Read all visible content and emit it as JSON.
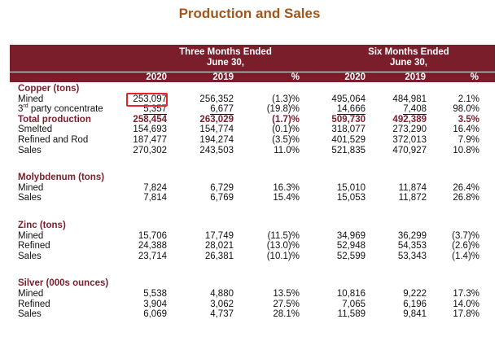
{
  "title": "Production and Sales",
  "header": {
    "group1_line1": "Three Months Ended",
    "group1_line2": "June 30,",
    "group2_line1": "Six Months Ended",
    "group2_line2": "June 30,",
    "columns": [
      "2020",
      "2019",
      "%",
      "2020",
      "2019",
      "%"
    ]
  },
  "colors": {
    "header_bg": "#7b1e2c",
    "title": "#a0561c",
    "highlight": "#e3242b"
  },
  "sections": {
    "copper": {
      "label": "Copper (tons)",
      "rows": [
        {
          "label": "Mined",
          "v": [
            "253,097",
            "256,352",
            "(1.3)%",
            "495,064",
            "484,981",
            "2.1%"
          ]
        },
        {
          "label_prefix": "3",
          "label_sup": "rd",
          "label_rest": " party concentrate",
          "v": [
            "5,357",
            "6,677",
            "(19.8)%",
            "14,666",
            "7,408",
            "98.0%"
          ]
        },
        {
          "label": "Total production",
          "v": [
            "258,454",
            "263,029",
            "(1.7)%",
            "509,730",
            "492,389",
            "3.5%"
          ]
        },
        {
          "label": "Smelted",
          "v": [
            "154,693",
            "154,774",
            "(0.1)%",
            "318,077",
            "273,290",
            "16.4%"
          ]
        },
        {
          "label": "Refined and Rod",
          "v": [
            "187,477",
            "194,274",
            "(3.5)%",
            "401,529",
            "372,013",
            "7.9%"
          ]
        },
        {
          "label": "Sales",
          "v": [
            "270,302",
            "243,503",
            "11.0%",
            "521,835",
            "470,927",
            "10.8%"
          ]
        }
      ]
    },
    "molybdenum": {
      "label": "Molybdenum (tons)",
      "rows": [
        {
          "label": "Mined",
          "v": [
            "7,824",
            "6,729",
            "16.3%",
            "15,010",
            "11,874",
            "26.4%"
          ]
        },
        {
          "label": "Sales",
          "v": [
            "7,814",
            "6,769",
            "15.4%",
            "15,053",
            "11,872",
            "26.8%"
          ]
        }
      ]
    },
    "zinc": {
      "label": "Zinc (tons)",
      "rows": [
        {
          "label": "Mined",
          "v": [
            "15,706",
            "17,749",
            "(11.5)%",
            "34,969",
            "36,299",
            "(3.7)%"
          ]
        },
        {
          "label": "Refined",
          "v": [
            "24,388",
            "28,021",
            "(13.0)%",
            "52,948",
            "54,353",
            "(2.6)%"
          ]
        },
        {
          "label": "Sales",
          "v": [
            "23,714",
            "26,381",
            "(10.1)%",
            "52,599",
            "53,343",
            "(1.4)%"
          ]
        }
      ]
    },
    "silver": {
      "label": "Silver (000s ounces)",
      "rows": [
        {
          "label": "Mined",
          "v": [
            "5,538",
            "4,880",
            "13.5%",
            "10,816",
            "9,222",
            "17.3%"
          ]
        },
        {
          "label": "Refined",
          "v": [
            "3,904",
            "3,062",
            "27.5%",
            "7,065",
            "6,196",
            "14.0%"
          ]
        },
        {
          "label": "Sales",
          "v": [
            "6,069",
            "4,737",
            "28.1%",
            "11,589",
            "9,841",
            "17.8%"
          ]
        }
      ]
    }
  }
}
